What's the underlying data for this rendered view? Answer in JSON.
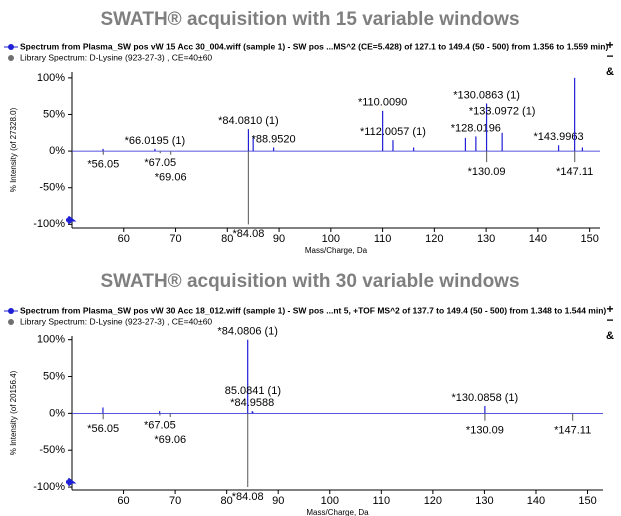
{
  "chart_data": [
    {
      "type": "spectrum",
      "title": "SWATH® acquisition with 15 variable windows",
      "xlabel": "Mass/Charge, Da",
      "ylabel": "% Intensity (of 27328.0)",
      "xlim": [
        50,
        152
      ],
      "ylim": [
        -105,
        108
      ],
      "xticks": [
        60,
        70,
        80,
        90,
        100,
        110,
        120,
        130,
        140,
        150
      ],
      "yticks": [
        {
          "value": -100,
          "label": "-100%"
        },
        {
          "value": -50,
          "label": "-50%"
        },
        {
          "value": 0,
          "label": "0%"
        },
        {
          "value": 50,
          "label": "50%"
        },
        {
          "value": 100,
          "label": "100%"
        }
      ],
      "series": [
        {
          "name": "Spectrum from Plasma_SW pos vW 15 Acc 30_004.wiff (sample 1) - SW pos ...MS^2 (CE=5.428) of 127.1 to 149.4 (50 - 500) from 1.356 to 1.559 min)",
          "color": "#1f1fd6",
          "x": [
            56.0,
            66.0195,
            84.081,
            85.0,
            88.952,
            110.009,
            112.0057,
            116.0,
            126.0,
            128.0196,
            130.0863,
            133.0972,
            143.9963,
            147.1,
            148.6
          ],
          "values": [
            3,
            3,
            30,
            20,
            5,
            55,
            15,
            5,
            18,
            20,
            65,
            25,
            8,
            100,
            5
          ],
          "labels": [
            null,
            "*66.0195 (1)",
            "*84.0810 (1)",
            null,
            "*88.9520",
            "*110.0090",
            "*112.0057 (1)",
            null,
            null,
            "*128.0196",
            "*130.0863 (1)",
            "*133.0972 (1)",
            "*143.9963",
            null,
            null
          ]
        },
        {
          "name": "Library Spectrum: D-Lysine (923-27-3) , CE=40±60",
          "color": "#707070",
          "x": [
            56.05,
            67.05,
            69.06,
            84.08,
            130.09,
            147.11
          ],
          "values": [
            -5,
            -3,
            -5,
            -100,
            -15,
            -15
          ],
          "labels": [
            "*56.05",
            "*67.05",
            "*69.06",
            "*84.08",
            "*130.09",
            "*147.11"
          ]
        }
      ]
    },
    {
      "type": "spectrum",
      "title": "SWATH® acquisition with 30 variable windows",
      "xlabel": "Mass/Charge, Da",
      "ylabel": "% Intensity (of 20156.4)",
      "xlim": [
        50,
        153
      ],
      "ylim": [
        -104,
        105
      ],
      "xticks": [
        60,
        70,
        80,
        90,
        100,
        110,
        120,
        130,
        140,
        150
      ],
      "yticks": [
        {
          "value": -100,
          "label": "-100%"
        },
        {
          "value": -50,
          "label": "-50%"
        },
        {
          "value": 0,
          "label": "0%"
        },
        {
          "value": 50,
          "label": "50%"
        },
        {
          "value": 100,
          "label": "100%"
        }
      ],
      "series": [
        {
          "name": "Spectrum from Plasma_SW pos vW 30 Acc 18_012.wiff (sample 1) - SW pos ...nt 5, +TOF MS^2 of 137.7 to 149.4 (50 - 500) from 1.348 to 1.544 min)",
          "color": "#1f1fd6",
          "x": [
            56.0,
            67.0,
            84.0806,
            84.9588,
            85.0841,
            130.0858
          ],
          "values": [
            8,
            3,
            100,
            3,
            2,
            10
          ],
          "labels": [
            null,
            null,
            "*84.0806 (1)",
            "*84.9588",
            "85.0841 (1)",
            "*130.0858 (1)"
          ]
        },
        {
          "name": "Library Spectrum: D-Lysine (923-27-3) , CE=40±60",
          "color": "#707070",
          "x": [
            56.05,
            67.05,
            69.06,
            84.08,
            130.09,
            147.11
          ],
          "values": [
            -8,
            -3,
            -5,
            -100,
            -10,
            -10
          ],
          "labels": [
            "*56.05",
            "*67.05",
            "*69.06",
            "*84.08",
            "*130.09",
            "*147.11"
          ]
        }
      ]
    }
  ]
}
